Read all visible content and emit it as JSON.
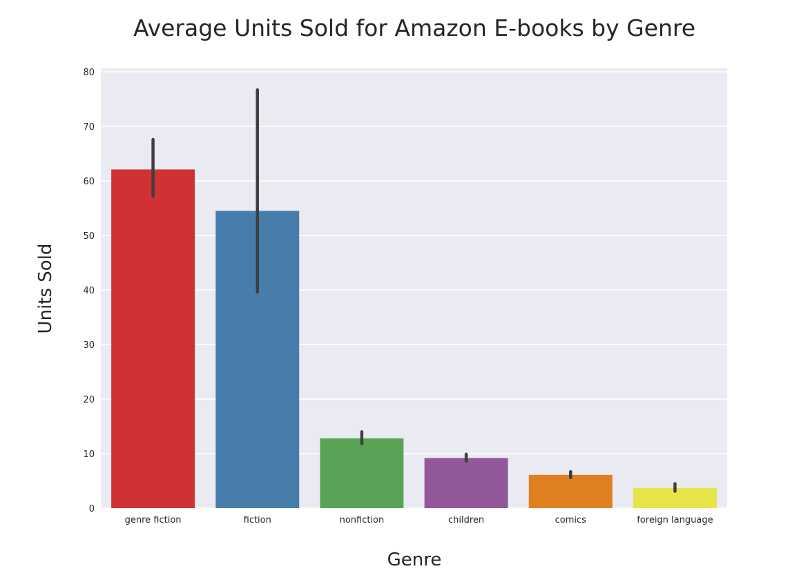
{
  "chart_data": {
    "type": "bar",
    "title": "Average Units Sold for Amazon E-books by Genre",
    "xlabel": "Genre",
    "ylabel": "Units Sold",
    "categories": [
      "genre fiction",
      "fiction",
      "nonfiction",
      "children",
      "comics",
      "foreign language"
    ],
    "values": [
      62.1,
      54.5,
      12.8,
      9.2,
      6.1,
      3.7
    ],
    "error_low": [
      57.2,
      39.6,
      11.8,
      8.6,
      5.6,
      3.1
    ],
    "error_high": [
      67.6,
      76.7,
      14.0,
      9.9,
      6.7,
      4.5
    ],
    "colors": [
      "#d03234",
      "#477cab",
      "#5aa356",
      "#93589a",
      "#e07f20",
      "#e5e54a"
    ],
    "ylim": [
      0,
      80
    ],
    "yticks": [
      0,
      10,
      20,
      30,
      40,
      50,
      60,
      70,
      80
    ],
    "grid": true,
    "background": "#eaeaf2",
    "errorbar_color": "#3f3f3f"
  }
}
